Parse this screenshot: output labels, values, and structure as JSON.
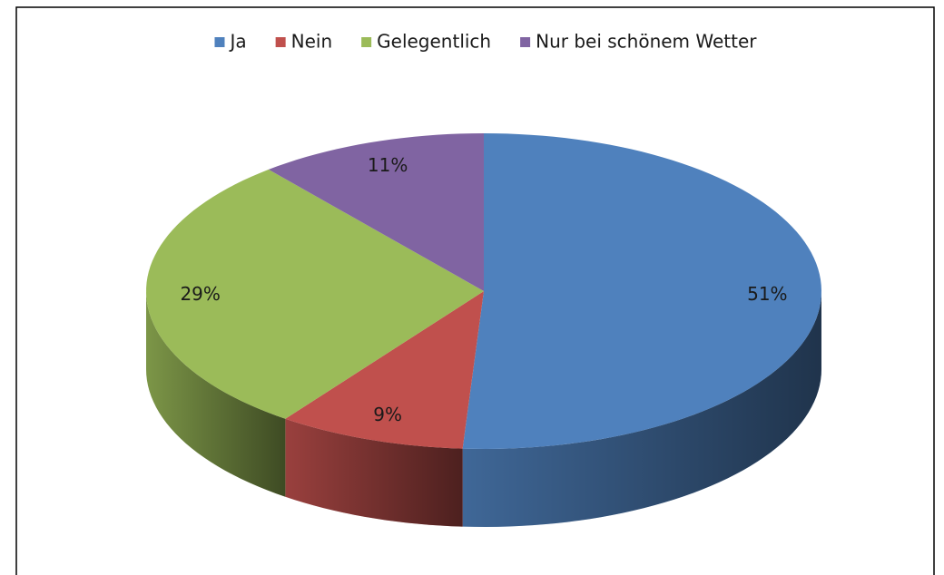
{
  "chart_data": {
    "type": "pie",
    "categories": [
      "Ja",
      "Nein",
      "Gelegentlich",
      "Nur bei schönem Wetter"
    ],
    "values": [
      51,
      9,
      29,
      11
    ],
    "value_labels": [
      "51%",
      "9%",
      "29%",
      "11%"
    ],
    "colors": [
      "#4f81bd",
      "#c0504d",
      "#9bbb59",
      "#8064a2"
    ],
    "legend": "top"
  }
}
